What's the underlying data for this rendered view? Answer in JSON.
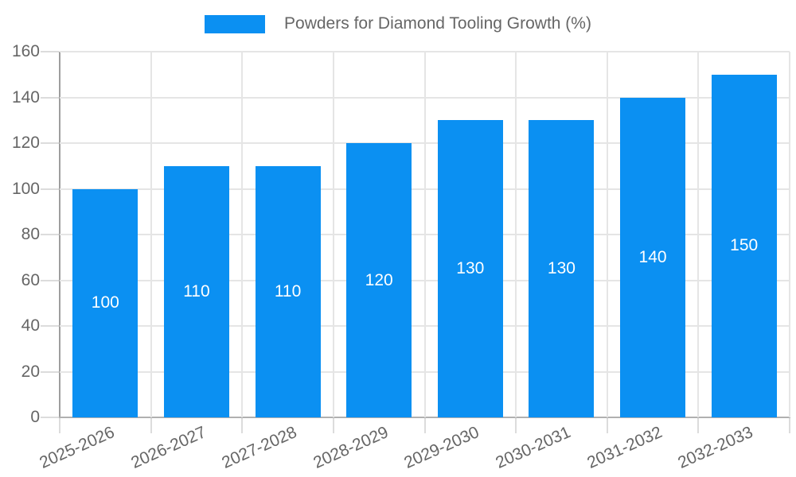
{
  "chart_data": {
    "type": "bar",
    "title": "Powders for Diamond Tooling Growth (%)",
    "legend_entries": [
      "Powders for Diamond Tooling Growth (%)"
    ],
    "legend_position": "top-center",
    "categories": [
      "2025-2026",
      "2026-2027",
      "2027-2028",
      "2028-2029",
      "2029-2030",
      "2030-2031",
      "2031-2032",
      "2032-2033"
    ],
    "values": [
      100,
      110,
      110,
      120,
      130,
      130,
      140,
      150
    ],
    "value_labels": [
      "100",
      "110",
      "110",
      "120",
      "130",
      "130",
      "140",
      "150"
    ],
    "ytick_labels": [
      "0",
      "20",
      "40",
      "60",
      "80",
      "100",
      "120",
      "140",
      "160"
    ],
    "ylim": [
      0,
      160
    ],
    "ytick_step": 20,
    "grid": true,
    "xlabel": "",
    "ylabel": "",
    "colors": {
      "bar": "#0b90f2",
      "grid": "#e5e5e5",
      "y_axis_line": "#9e9e9e",
      "x_axis_line": "#b0b0b0",
      "tick_mark": "#dcdcdc",
      "tick_text": "#666666",
      "legend_text": "#666666",
      "value_label": "#ffffff",
      "background": "#ffffff"
    }
  }
}
